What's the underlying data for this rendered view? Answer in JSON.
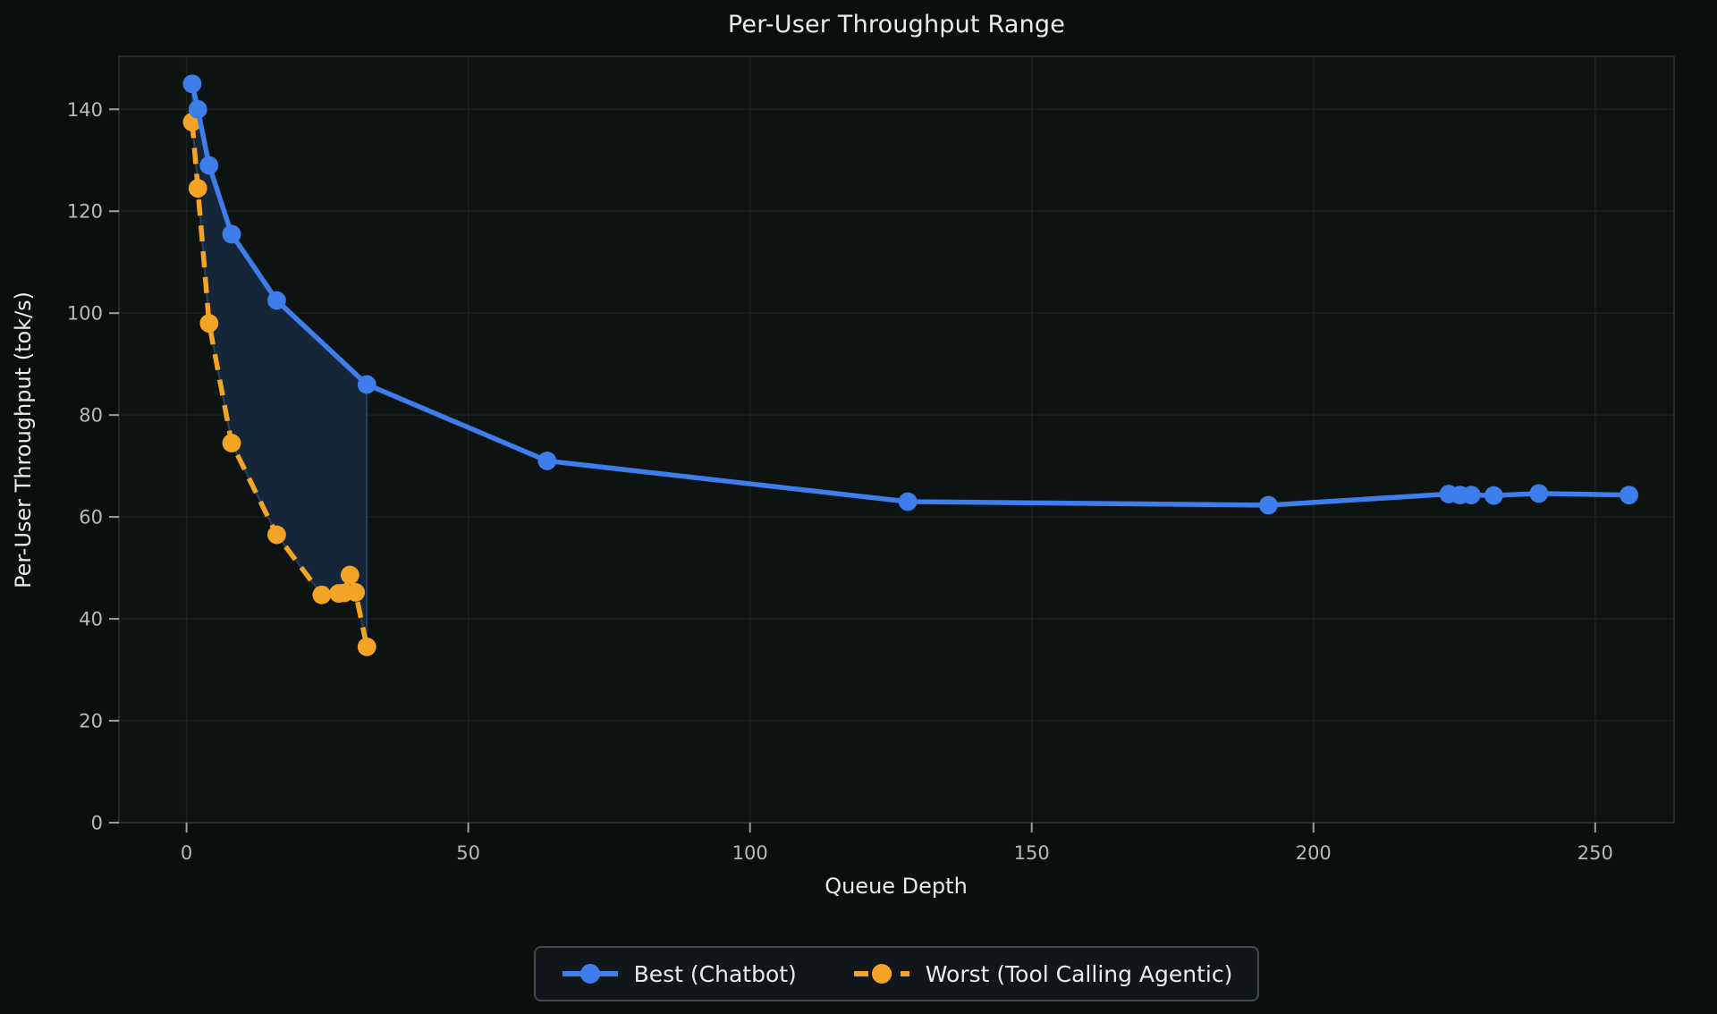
{
  "title": "Per-User Throughput Range",
  "axes": {
    "x_label": "Queue Depth",
    "y_label": "Per-User Throughput (tok/s)",
    "x_ticks": [
      0,
      50,
      100,
      150,
      200,
      250
    ],
    "y_ticks": [
      0,
      20,
      40,
      60,
      80,
      100,
      120,
      140
    ]
  },
  "legend": {
    "items": [
      {
        "label": "Best (Chatbot)",
        "color": "#3e7dec",
        "dashed": false
      },
      {
        "label": "Worst (Tool Calling Agentic)",
        "color": "#f4a424",
        "dashed": true
      }
    ]
  },
  "colors": {
    "figure_bg": "#0a0e0c",
    "plot_bg": "#0d1310",
    "grid": "#1b221e",
    "spine": "#2a312c",
    "tick_mark": "#9aa09c",
    "tick_text": "#b6bab8",
    "label_text": "#e9ebea",
    "best_blue": "#3e7dec",
    "worst_orange": "#f4a424",
    "band_fill": "#152638",
    "band_edge": "rgba(80,140,220,0.32)"
  },
  "chart_data": {
    "type": "line",
    "title": "Per-User Throughput Range",
    "xlabel": "Queue Depth",
    "ylabel": "Per-User Throughput (tok/s)",
    "xlim": [
      -12,
      264
    ],
    "ylim": [
      0,
      150.4
    ],
    "grid": true,
    "legend_position": "bottom-center",
    "fill_between": {
      "upper": "Best (Chatbot)",
      "lower": "Worst (Tool Calling Agentic)",
      "x_range": [
        1,
        32
      ],
      "color": "#152638"
    },
    "series": [
      {
        "name": "Best (Chatbot)",
        "color": "#3e7dec",
        "style": "solid",
        "marker": "circle",
        "x": [
          1,
          2,
          4,
          8,
          16,
          32,
          64,
          128,
          192,
          224,
          226,
          228,
          232,
          240,
          256
        ],
        "y": [
          145,
          140,
          129,
          115.5,
          102.5,
          86,
          71,
          63,
          62.3,
          64.5,
          64.3,
          64.3,
          64.2,
          64.6,
          64.3
        ]
      },
      {
        "name": "Worst (Tool Calling Agentic)",
        "color": "#f4a424",
        "style": "dashed",
        "marker": "circle",
        "x": [
          1,
          2,
          4,
          8,
          16,
          24,
          27,
          28,
          29,
          30,
          32
        ],
        "y": [
          137.5,
          124.5,
          98,
          74.5,
          56.5,
          44.7,
          45,
          45.1,
          48.6,
          45.2,
          34.5
        ]
      }
    ]
  }
}
